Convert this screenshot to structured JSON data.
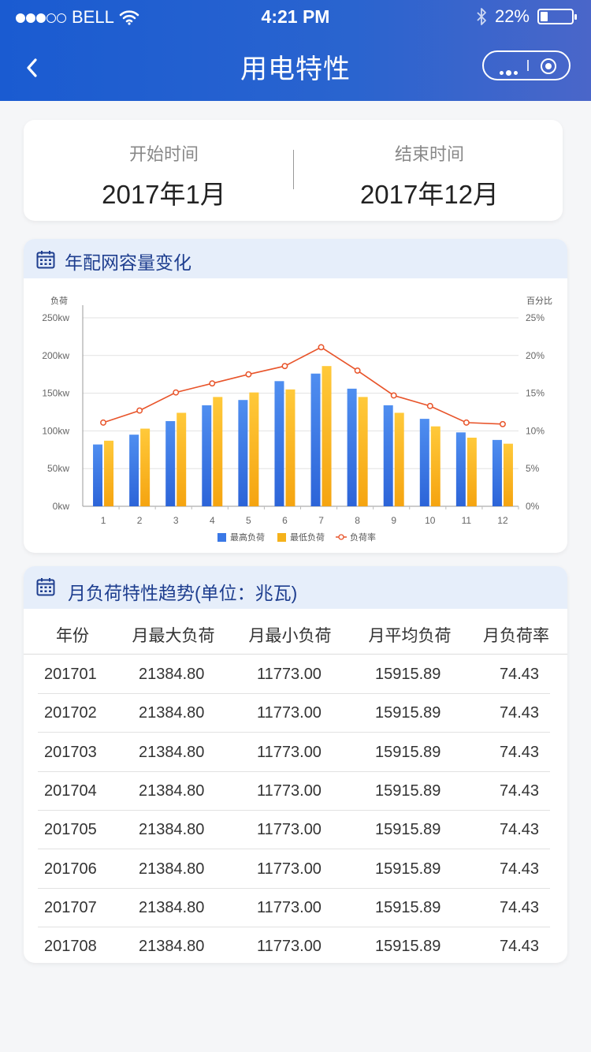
{
  "status_bar": {
    "carrier": "BELL",
    "time": "4:21 PM",
    "battery": "22%",
    "battery_level": 0.22,
    "icons": [
      "signal-dots",
      "wifi-icon",
      "bluetooth-icon",
      "battery-icon"
    ]
  },
  "nav": {
    "title": "用电特性",
    "icons": [
      "back-icon",
      "more-icon",
      "target-icon"
    ]
  },
  "period": {
    "start_label": "开始时间",
    "start_value": "2017年1月",
    "end_label": "结束时间",
    "end_value": "2017年12月"
  },
  "chart_section": {
    "title": "年配网容量变化",
    "icon": "calendar-icon"
  },
  "chart_data": {
    "type": "bar",
    "title": "",
    "ylabel": "负荷",
    "y2label": "百分比",
    "categories": [
      "1",
      "2",
      "3",
      "4",
      "5",
      "6",
      "7",
      "8",
      "9",
      "10",
      "11",
      "12"
    ],
    "y_ticks": [
      "0kw",
      "50kw",
      "100kw",
      "150kw",
      "200kw",
      "250kw"
    ],
    "y2_ticks": [
      "0%",
      "5%",
      "10%",
      "15%",
      "20%",
      "25%"
    ],
    "ylim": [
      0,
      250
    ],
    "y2lim": [
      0,
      25
    ],
    "grid": true,
    "legend_position": "bottom",
    "series": [
      {
        "name": "最高负荷",
        "type": "bar",
        "axis": "left",
        "color": "#3a78e6",
        "values": [
          82,
          95,
          113,
          134,
          141,
          166,
          176,
          156,
          134,
          116,
          98,
          88
        ]
      },
      {
        "name": "最低负荷",
        "type": "bar",
        "axis": "left",
        "color": "#f5b21b",
        "values": [
          87,
          103,
          124,
          145,
          151,
          155,
          186,
          145,
          124,
          106,
          91,
          83
        ]
      },
      {
        "name": "负荷率",
        "type": "line",
        "axis": "right",
        "color": "#e8542a",
        "values": [
          11.1,
          12.7,
          15.1,
          16.3,
          17.5,
          18.6,
          21.1,
          18.0,
          14.7,
          13.3,
          11.1,
          10.9
        ]
      }
    ]
  },
  "table_section": {
    "title": "月负荷特性趋势(单位：兆瓦)",
    "icon": "calendar-icon",
    "columns": [
      "年份",
      "月最大负荷",
      "月最小负荷",
      "月平均负荷",
      "月负荷率"
    ],
    "rows": [
      [
        "201701",
        "21384.80",
        "11773.00",
        "15915.89",
        "74.43"
      ],
      [
        "201702",
        "21384.80",
        "11773.00",
        "15915.89",
        "74.43"
      ],
      [
        "201703",
        "21384.80",
        "11773.00",
        "15915.89",
        "74.43"
      ],
      [
        "201704",
        "21384.80",
        "11773.00",
        "15915.89",
        "74.43"
      ],
      [
        "201705",
        "21384.80",
        "11773.00",
        "15915.89",
        "74.43"
      ],
      [
        "201706",
        "21384.80",
        "11773.00",
        "15915.89",
        "74.43"
      ],
      [
        "201707",
        "21384.80",
        "11773.00",
        "15915.89",
        "74.43"
      ],
      [
        "201708",
        "21384.80",
        "11773.00",
        "15915.89",
        "74.43"
      ]
    ]
  }
}
